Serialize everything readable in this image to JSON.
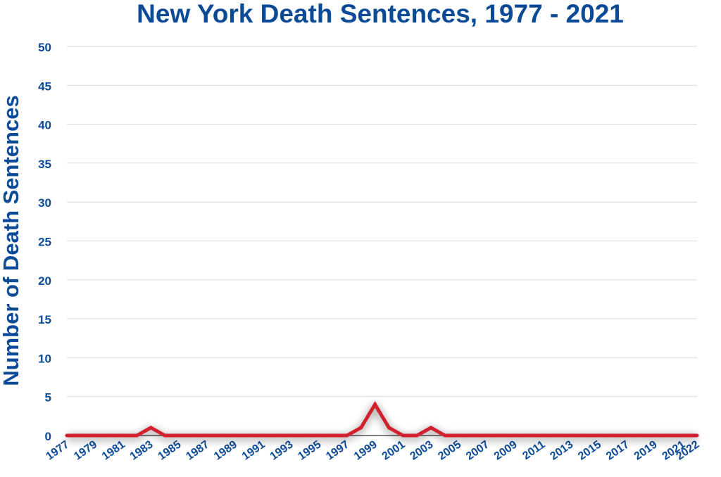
{
  "chart_data": {
    "type": "line",
    "title": "New York Death Sentences, 1977 - 2021",
    "xlabel": "",
    "ylabel": "Number of Death Sentences",
    "ylim": [
      0,
      50
    ],
    "yticks": [
      "0",
      "5",
      "10",
      "15",
      "20",
      "25",
      "30",
      "35",
      "40",
      "45",
      "50"
    ],
    "xticks": [
      "1977",
      "1979",
      "1981",
      "1983",
      "1985",
      "1987",
      "1989",
      "1991",
      "1993",
      "1995",
      "1997",
      "1999",
      "2001",
      "2003",
      "2005",
      "2007",
      "2009",
      "2011",
      "2013",
      "2015",
      "2017",
      "2019",
      "2021",
      "2022"
    ],
    "grid": true,
    "legend": "none",
    "x": [
      1977,
      1978,
      1979,
      1980,
      1981,
      1982,
      1983,
      1984,
      1985,
      1986,
      1987,
      1988,
      1989,
      1990,
      1991,
      1992,
      1993,
      1994,
      1995,
      1996,
      1997,
      1998,
      1999,
      2000,
      2001,
      2002,
      2003,
      2004,
      2005,
      2006,
      2007,
      2008,
      2009,
      2010,
      2011,
      2012,
      2013,
      2014,
      2015,
      2016,
      2017,
      2018,
      2019,
      2020,
      2021,
      2022
    ],
    "series": [
      {
        "values": [
          0,
          0,
          0,
          0,
          0,
          0,
          1,
          0,
          0,
          0,
          0,
          0,
          0,
          0,
          0,
          0,
          0,
          0,
          0,
          0,
          0,
          1,
          4,
          1,
          0,
          0,
          1,
          0,
          0,
          0,
          0,
          0,
          0,
          0,
          0,
          0,
          0,
          0,
          0,
          0,
          0,
          0,
          0,
          0,
          0,
          0
        ]
      }
    ],
    "colors": {
      "title": "#0b4a97",
      "axis_text": "#0b4a97",
      "line": "#d0202f",
      "grid": "#d9d9d9",
      "axis": "#555555"
    }
  }
}
